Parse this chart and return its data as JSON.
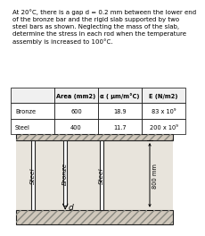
{
  "title_text": "At 20°C, there is a gap d = 0.2 mm between the lower end\nof the bronze bar and the rigid slab supported by two\nsteel bars as shown. Neglecting the mass of the slab,\ndetermine the stress in each rod when the temperature\nassembly is increased to 100°C.",
  "table_headers": [
    "",
    "Area (mm2)",
    "α ( μm/m°C)",
    "E (N/m2)"
  ],
  "table_rows": [
    [
      "Bronze",
      "600",
      "18.9",
      "83 x 10⁹"
    ],
    [
      "Steel",
      "400",
      "11.7",
      "200 x 10⁹"
    ]
  ],
  "label_steel": "Steel",
  "label_bronze": "Bronze",
  "label_dim": "800 mm",
  "label_gap": "d",
  "top_hatch_color": "#b0a898",
  "slab_hatch_color": "#c0b8a8",
  "bar_edge_color": "#222222",
  "diagram_bg": "#e8e4dc",
  "title_fontsize": 5.0,
  "table_fontsize": 4.8,
  "label_fontsize": 5.2,
  "dim_fontsize": 4.8
}
